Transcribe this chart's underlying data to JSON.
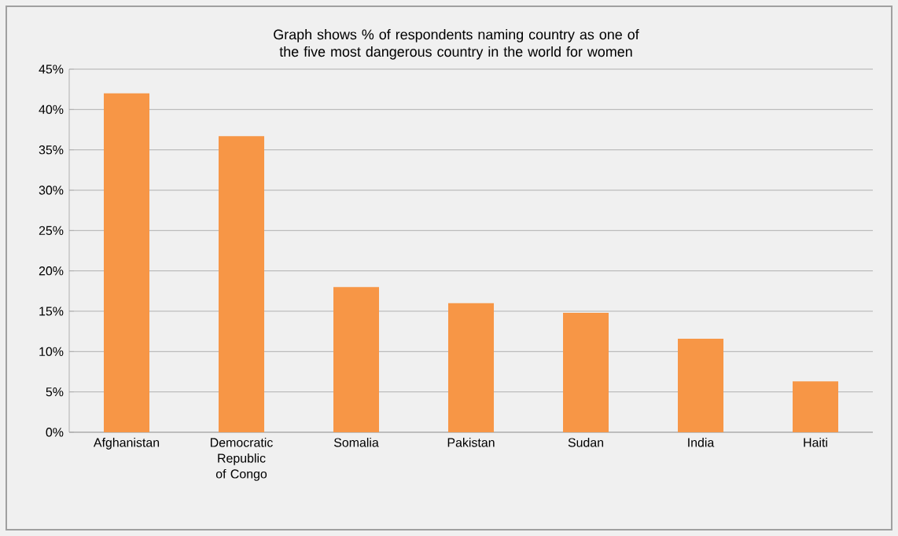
{
  "chart_data": {
    "type": "bar",
    "title": "Graph shows % of respondents naming country as one of the five most dangerous country in the world for women",
    "categories": [
      "Afghanistan",
      "Democratic Republic of Congo",
      "Somalia",
      "Pakistan",
      "Sudan",
      "India",
      "Haiti"
    ],
    "values": [
      42,
      36.7,
      18,
      16,
      14.8,
      11.6,
      6.3
    ],
    "color": "#f79646",
    "ylim": [
      0,
      45
    ],
    "yticks": [
      {
        "value": 0,
        "label": "0%"
      },
      {
        "value": 5,
        "label": "5%"
      },
      {
        "value": 10,
        "label": "10%"
      },
      {
        "value": 15,
        "label": "15%"
      },
      {
        "value": 20,
        "label": "20%"
      },
      {
        "value": 25,
        "label": "25%"
      },
      {
        "value": 30,
        "label": "30%"
      },
      {
        "value": 35,
        "label": "35%"
      },
      {
        "value": 40,
        "label": "40%"
      },
      {
        "value": 45,
        "label": "45%"
      }
    ],
    "grid": "y"
  }
}
